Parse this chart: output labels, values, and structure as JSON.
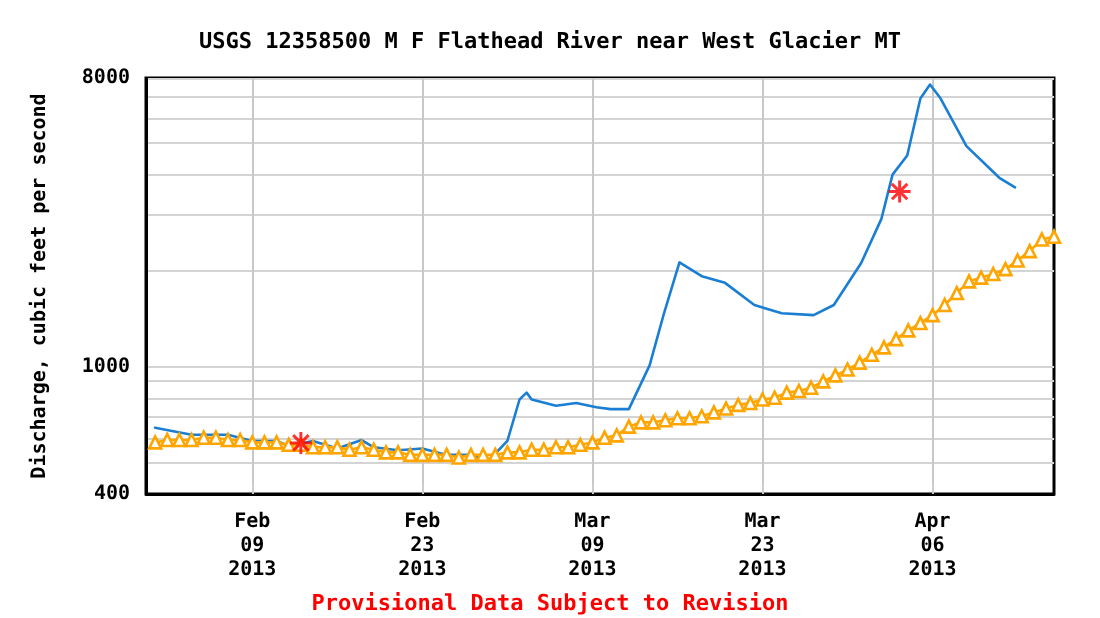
{
  "chart_data": {
    "type": "line",
    "title": "USGS 12358500 M F Flathead River near West Glacier MT",
    "ylabel": "Discharge, cubic feet per second",
    "annotations": [
      "Provisional Data Subject to Revision"
    ],
    "log": "y",
    "grid": true,
    "xlim": [
      "2013-01-31T06:00",
      "2013-04-16"
    ],
    "xticks": [
      {
        "value": "2013-02-09",
        "label": "Feb\n09\n2013"
      },
      {
        "value": "2013-02-23",
        "label": "Feb\n23\n2013"
      },
      {
        "value": "2013-03-09",
        "label": "Mar\n09\n2013"
      },
      {
        "value": "2013-03-23",
        "label": "Mar\n23\n2013"
      },
      {
        "value": "2013-04-06",
        "label": "Apr\n06\n2013"
      }
    ],
    "ylim": [
      400,
      8000
    ],
    "yticks": [
      400,
      {
        "value": 500,
        "label": null
      },
      {
        "value": 600,
        "label": null
      },
      {
        "value": 700,
        "label": null
      },
      {
        "value": 800,
        "label": null
      },
      {
        "value": 900,
        "label": null
      },
      1000,
      {
        "value": 2000,
        "label": null
      },
      {
        "value": 3000,
        "label": null
      },
      {
        "value": 4000,
        "label": null
      },
      {
        "value": 5000,
        "label": null
      },
      {
        "value": 6000,
        "label": null
      },
      {
        "value": 7000,
        "label": null
      },
      8000
    ],
    "series": [
      {
        "color": "#1a7fd4",
        "marker": "none",
        "line_style": "solid",
        "x": [
          "2013-02-01",
          "2013-02-04",
          "2013-02-07",
          "2013-02-09",
          "2013-02-11",
          "2013-02-12",
          "2013-02-14",
          "2013-02-16",
          "2013-02-18",
          "2013-02-19",
          "2013-02-21",
          "2013-02-23",
          "2013-02-25",
          "2013-02-27",
          "2013-02-28T12:00",
          "2013-03-02",
          "2013-03-03",
          "2013-03-03T14:00",
          "2013-03-04",
          "2013-03-06",
          "2013-03-07T16:00",
          "2013-03-09T08:00",
          "2013-03-10T12:00",
          "2013-03-12",
          "2013-03-13T17:00",
          "2013-03-14T21:00",
          "2013-03-16T04:00",
          "2013-03-18",
          "2013-03-19T22:00",
          "2013-03-22T08:00",
          "2013-03-24T14:00",
          "2013-03-27T05:00",
          "2013-03-28T21:00",
          "2013-03-31T03:00",
          "2013-04-01T19:00",
          "2013-04-02T17:00",
          "2013-04-03T22:00",
          "2013-04-05",
          "2013-04-05T19:00",
          "2013-04-06T16:00",
          "2013-04-08T19:00",
          "2013-04-11T12:00",
          "2013-04-12T19:00"
        ],
        "values": [
          645,
          613,
          613,
          586,
          586,
          565,
          586,
          555,
          590,
          560,
          548,
          555,
          530,
          530,
          511,
          586,
          790,
          830,
          790,
          755,
          770,
          747,
          737,
          737,
          1010,
          1460,
          2120,
          1920,
          1830,
          1560,
          1470,
          1450,
          1560,
          2110,
          2900,
          3990,
          4580,
          6900,
          7630,
          6900,
          4900,
          3900,
          3640
        ]
      },
      {
        "color": "#ffa500",
        "marker": "triangle",
        "line_style": "solid",
        "x": [
          "2013-02-01",
          "2013-02-02",
          "2013-02-03",
          "2013-02-04",
          "2013-02-05",
          "2013-02-06",
          "2013-02-07",
          "2013-02-08",
          "2013-02-09",
          "2013-02-10",
          "2013-02-11",
          "2013-02-12",
          "2013-02-13",
          "2013-02-14",
          "2013-02-15",
          "2013-02-16",
          "2013-02-17",
          "2013-02-18",
          "2013-02-19",
          "2013-02-20",
          "2013-02-21",
          "2013-02-22",
          "2013-02-23",
          "2013-02-24",
          "2013-02-25",
          "2013-02-26",
          "2013-02-27",
          "2013-02-28",
          "2013-03-01",
          "2013-03-02",
          "2013-03-03",
          "2013-03-04",
          "2013-03-05",
          "2013-03-06",
          "2013-03-07",
          "2013-03-08",
          "2013-03-09",
          "2013-03-10",
          "2013-03-11",
          "2013-03-12",
          "2013-03-13",
          "2013-03-14",
          "2013-03-15",
          "2013-03-16",
          "2013-03-17",
          "2013-03-18",
          "2013-03-19",
          "2013-03-20",
          "2013-03-21",
          "2013-03-22",
          "2013-03-23",
          "2013-03-24",
          "2013-03-25",
          "2013-03-26",
          "2013-03-27",
          "2013-03-28",
          "2013-03-29",
          "2013-03-30",
          "2013-03-31",
          "2013-04-01",
          "2013-04-02",
          "2013-04-03",
          "2013-04-04",
          "2013-04-05",
          "2013-04-06",
          "2013-04-07",
          "2013-04-08",
          "2013-04-09",
          "2013-04-10",
          "2013-04-11",
          "2013-04-12",
          "2013-04-13",
          "2013-04-14",
          "2013-04-15",
          "2013-04-16"
        ],
        "values": [
          580,
          590,
          590,
          590,
          600,
          600,
          590,
          590,
          580,
          580,
          580,
          570,
          570,
          560,
          560,
          560,
          550,
          560,
          550,
          540,
          540,
          530,
          530,
          530,
          530,
          520,
          530,
          530,
          530,
          540,
          540,
          550,
          550,
          560,
          560,
          570,
          580,
          600,
          610,
          650,
          670,
          670,
          680,
          690,
          690,
          700,
          720,
          740,
          760,
          770,
          790,
          800,
          830,
          840,
          860,
          900,
          940,
          980,
          1030,
          1090,
          1150,
          1220,
          1300,
          1370,
          1450,
          1560,
          1700,
          1850,
          1900,
          1950,
          2020,
          2150,
          2300,
          2500,
          2550
        ]
      },
      {
        "type": "scatter",
        "color": "#ff0000",
        "marker": "cross",
        "x": [
          "2013-02-13",
          "2013-04-03T07:00"
        ],
        "values": [
          578,
          3530
        ]
      }
    ]
  }
}
